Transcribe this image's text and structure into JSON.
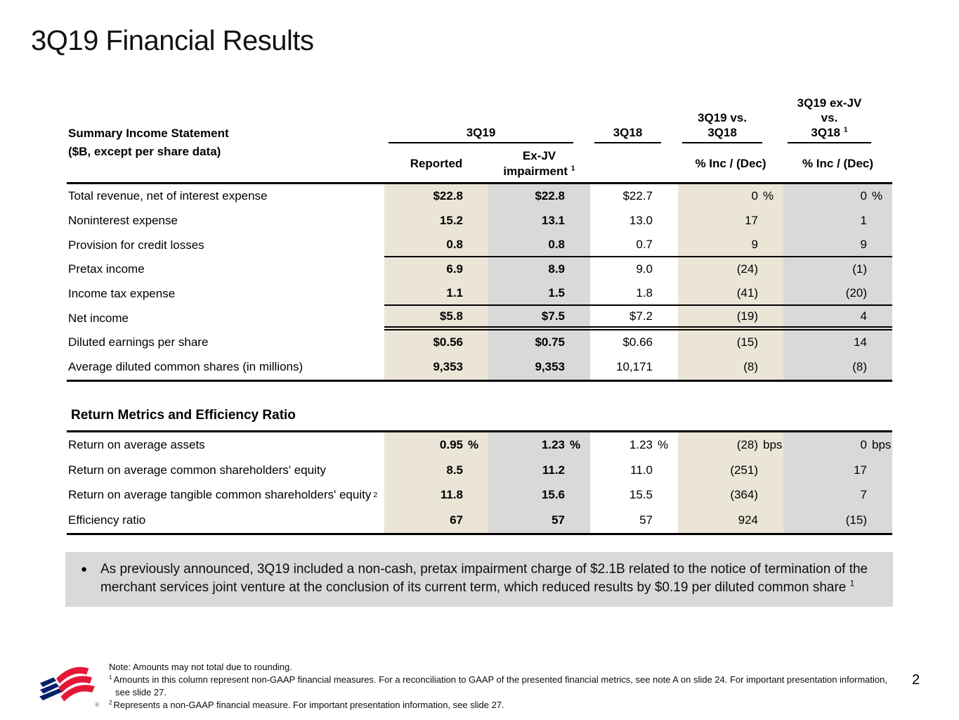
{
  "slide": {
    "title": "3Q19 Financial Results",
    "page_number": "2"
  },
  "income_statement": {
    "title_line1": "Summary Income Statement",
    "title_line2": "($B, except per share data)",
    "groups": {
      "q3_19": "3Q19",
      "q3_18": "3Q18",
      "vs": "3Q19 vs. 3Q18",
      "exjv_vs_line1": "3Q19 ex-JV vs.",
      "exjv_vs_line2": "3Q18",
      "exjv_vs_sup": "1"
    },
    "subheaders": {
      "reported": "Reported",
      "exjv_line1": "Ex-JV",
      "exjv_line2": "impairment",
      "exjv_sup": "1",
      "pct_inc_dec": "% Inc / (Dec)"
    },
    "rows": [
      {
        "label": "Total revenue, net of interest expense",
        "cells": [
          {
            "v": "$22.8"
          },
          {
            "v": "$22.8"
          },
          {
            "v": "$22.7"
          },
          {
            "v": "0",
            "u": "%"
          },
          {
            "v": "0",
            "u": "%"
          }
        ]
      },
      {
        "label": "Noninterest expense",
        "cells": [
          {
            "v": "15.2"
          },
          {
            "v": "13.1"
          },
          {
            "v": "13.0"
          },
          {
            "v": "17"
          },
          {
            "v": "1"
          }
        ]
      },
      {
        "label": "Provision for credit losses",
        "cells": [
          {
            "v": "0.8"
          },
          {
            "v": "0.8"
          },
          {
            "v": "0.7"
          },
          {
            "v": "9"
          },
          {
            "v": "9"
          }
        ]
      },
      {
        "label": "Pretax income",
        "cells": [
          {
            "v": "6.9"
          },
          {
            "v": "8.9"
          },
          {
            "v": "9.0"
          },
          {
            "v": "(24)"
          },
          {
            "v": "(1)"
          }
        ]
      },
      {
        "label": "Income tax expense",
        "cells": [
          {
            "v": "1.1"
          },
          {
            "v": "1.5"
          },
          {
            "v": "1.8"
          },
          {
            "v": "(41)"
          },
          {
            "v": "(20)"
          }
        ]
      },
      {
        "label": "Net income",
        "cells": [
          {
            "v": "$5.8"
          },
          {
            "v": "$7.5"
          },
          {
            "v": "$7.2"
          },
          {
            "v": "(19)"
          },
          {
            "v": "4"
          }
        ]
      },
      {
        "label": "Diluted earnings per share",
        "cells": [
          {
            "v": "$0.56"
          },
          {
            "v": "$0.75"
          },
          {
            "v": "$0.66"
          },
          {
            "v": "(15)"
          },
          {
            "v": "14"
          }
        ]
      },
      {
        "label": "Average diluted common shares (in millions)",
        "cells": [
          {
            "v": "9,353"
          },
          {
            "v": "9,353"
          },
          {
            "v": "10,171"
          },
          {
            "v": "(8)"
          },
          {
            "v": "(8)"
          }
        ]
      }
    ]
  },
  "return_metrics": {
    "section_title": "Return Metrics and Efficiency Ratio",
    "rows": [
      {
        "label": "Return on average assets",
        "cells": [
          {
            "v": "0.95",
            "u": "%"
          },
          {
            "v": "1.23",
            "u": "%"
          },
          {
            "v": "1.23",
            "u": "%"
          },
          {
            "v": "(28)",
            "u": "bps"
          },
          {
            "v": "0",
            "u": "bps"
          }
        ]
      },
      {
        "label": "Return on average common shareholders' equity",
        "cells": [
          {
            "v": "8.5"
          },
          {
            "v": "11.2"
          },
          {
            "v": "11.0"
          },
          {
            "v": "(251)"
          },
          {
            "v": "17"
          }
        ]
      },
      {
        "label": "Return on average tangible common shareholders' equity",
        "sup": "2",
        "cells": [
          {
            "v": "11.8"
          },
          {
            "v": "15.6"
          },
          {
            "v": "15.5"
          },
          {
            "v": "(364)"
          },
          {
            "v": "7"
          }
        ]
      },
      {
        "label": "Efficiency ratio",
        "cells": [
          {
            "v": "67"
          },
          {
            "v": "57"
          },
          {
            "v": "57"
          },
          {
            "v": "924"
          },
          {
            "v": "(15)"
          }
        ]
      }
    ]
  },
  "callout": {
    "bullet": "●",
    "text": "As previously announced, 3Q19 included a non-cash, pretax impairment charge of $2.1B related to the notice of termination of the merchant services joint venture at the conclusion of its current term, which reduced results by $0.19 per diluted common share",
    "sup": "1"
  },
  "footnotes": {
    "note": "Note: Amounts may not total due to rounding.",
    "fn1_sup": "1",
    "fn1": "Amounts in this column represent non-GAAP financial measures. For a reconciliation to GAAP of the presented financial metrics, see note A on slide 24. For important presentation information, see slide 27.",
    "fn2_sup": "2",
    "fn2": "Represents a non-GAAP financial measure. For important presentation information, see slide 27."
  },
  "logo": {
    "registered_mark": "®",
    "red": "#E31837",
    "blue": "#012169"
  },
  "colors": {
    "beige_column": "#EAE5D7",
    "gray_column": "#D9D9D9",
    "callout_bg": "#D9D9D9"
  }
}
